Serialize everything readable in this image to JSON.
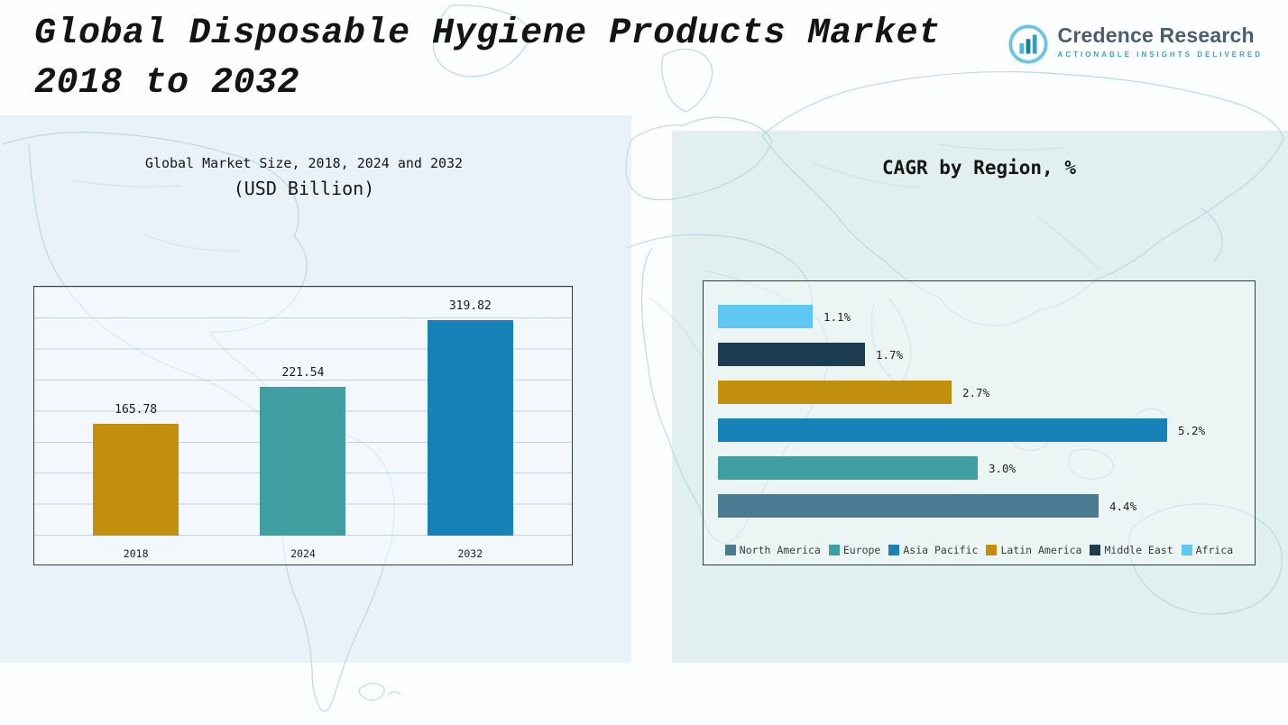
{
  "page": {
    "title_line1": "Global Disposable Hygiene Products Market",
    "title_line2": "2018 to 2032"
  },
  "logo": {
    "name": "Credence Research",
    "tagline": "Actionable Insights Delivered",
    "icon": "bar-chart-circle-icon"
  },
  "colors": {
    "left_panel": "#eaf2f9",
    "right_panel": "#e1f0ee",
    "map_line": "#b4d6e4",
    "chart_border": "#2e3e49"
  },
  "chart_data": [
    {
      "type": "bar",
      "title": "Global Market Size, 2018, 2024 and 2032",
      "subtitle": "(USD Billion)",
      "categories": [
        "2018",
        "2024",
        "2032"
      ],
      "values": [
        165.78,
        221.54,
        319.82
      ],
      "value_labels": [
        "165.78",
        "221.54",
        "319.82"
      ],
      "colors": [
        "#c28e0e",
        "#3f9fa0",
        "#1682b8"
      ],
      "xlabel": "",
      "ylabel": "",
      "ylim": [
        0,
        370
      ],
      "grid": true,
      "legend_position": "none"
    },
    {
      "type": "bar",
      "orientation": "horizontal",
      "title": "CAGR by Region, %",
      "categories": [
        "Africa",
        "Middle East",
        "Latin America",
        "Asia Pacific",
        "Europe",
        "North America"
      ],
      "values": [
        1.1,
        1.7,
        2.7,
        5.2,
        3.0,
        4.4
      ],
      "value_labels": [
        "1.1%",
        "1.7%",
        "2.7%",
        "5.2%",
        "3.0%",
        "4.4%"
      ],
      "colors": [
        "#5ec8f2",
        "#1c3d4f",
        "#c28e0e",
        "#1682b8",
        "#3f9fa0",
        "#4b7b92"
      ],
      "xlim": [
        0,
        6
      ],
      "grid": false,
      "legend_position": "bottom",
      "legend": [
        "North America",
        "Europe",
        "Asia Pacific",
        "Latin America",
        "Middle East",
        "Africa"
      ],
      "legend_colors": [
        "#4b7b92",
        "#3f9fa0",
        "#1682b8",
        "#c28e0e",
        "#1c3d4f",
        "#5ec8f2"
      ]
    }
  ]
}
